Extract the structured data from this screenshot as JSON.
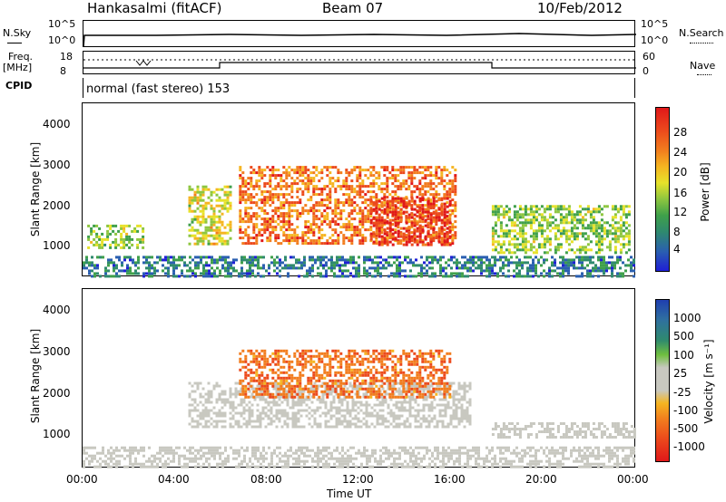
{
  "header": {
    "station": "Hankasalmi (fitACF)",
    "beam": "Beam 07",
    "date": "10/Feb/2012"
  },
  "strip": {
    "nsky_label": "N.Sky",
    "nsky_ticks": [
      "10^5",
      "10^0"
    ],
    "nsearch_label": "N.Search",
    "nsearch_ticks": [
      "10^5",
      "10^0"
    ],
    "freq_label": "Freq.",
    "freq_unit": "[MHz]",
    "freq_ticks": [
      "18",
      "8"
    ],
    "nave_label": "Nave",
    "nave_ticks": [
      "60",
      "0"
    ],
    "cpid_label": "CPID",
    "cpid_value": "normal (fast stereo) 153"
  },
  "chart_data": [
    {
      "type": "heatmap",
      "title": "",
      "ylabel": "Slant Range [km]",
      "xlabel": "",
      "yticks": [
        "1000",
        "2000",
        "3000",
        "4000"
      ],
      "ylim": [
        200,
        4600
      ],
      "xlim_hours": [
        0,
        24
      ],
      "colorbar": {
        "label": "Power [dB]",
        "ticks": [
          "4",
          "8",
          "12",
          "16",
          "20",
          "24",
          "28"
        ],
        "colors": [
          "#1f1fd6",
          "#2a5fb0",
          "#2f8a6e",
          "#3fa04a",
          "#8ec63f",
          "#e7e22a",
          "#f5b521",
          "#f27d1e",
          "#ec4a1c",
          "#e0181a"
        ]
      },
      "regions": [
        {
          "name": "early-morning echoes",
          "t": [
            0.2,
            2.6
          ],
          "range": [
            900,
            1500
          ],
          "level": 0.45
        },
        {
          "name": "ground scatter band",
          "t": [
            0.0,
            24.0
          ],
          "range": [
            200,
            700
          ],
          "level": 0.2
        },
        {
          "name": "dawn arc",
          "t": [
            4.6,
            6.4
          ],
          "range": [
            1000,
            2500
          ],
          "level": 0.55
        },
        {
          "name": "daytime main region",
          "t": [
            6.8,
            16.2
          ],
          "range": [
            1000,
            3000
          ],
          "level": 0.8
        },
        {
          "name": "afternoon strong echoes",
          "t": [
            12.5,
            16.0
          ],
          "range": [
            1000,
            2200
          ],
          "level": 0.95
        },
        {
          "name": "evening band",
          "t": [
            17.8,
            23.8
          ],
          "range": [
            800,
            2000
          ],
          "level": 0.45
        }
      ]
    },
    {
      "type": "heatmap",
      "title": "",
      "ylabel": "Slant Range [km]",
      "xlabel": "Time UT",
      "yticks": [
        "1000",
        "2000",
        "3000",
        "4000"
      ],
      "xticks": [
        "00:00",
        "04:00",
        "08:00",
        "12:00",
        "16:00",
        "20:00",
        "00:00"
      ],
      "ylim": [
        200,
        4600
      ],
      "xlim_hours": [
        0,
        24
      ],
      "colorbar": {
        "label": "Velocity [m s⁻¹]",
        "ticks": [
          "1000",
          "500",
          "100",
          "25",
          "-25",
          "-100",
          "-500",
          "-1000"
        ],
        "colors": [
          "#1f3fb0",
          "#2f6fa0",
          "#2f8a6e",
          "#6fbf3f",
          "#c8c8c0",
          "#c8c8c0",
          "#f5b521",
          "#f27d1e",
          "#ec4a1c",
          "#e0181a"
        ]
      },
      "regions": [
        {
          "name": "ground scatter (grey)",
          "t": [
            4.6,
            16.8
          ],
          "range": [
            1200,
            2300
          ],
          "level": 0.0
        },
        {
          "name": "negative velocity region",
          "t": [
            6.8,
            16.0
          ],
          "range": [
            1900,
            3100
          ],
          "level": -0.6
        },
        {
          "name": "evening grey",
          "t": [
            17.8,
            24.0
          ],
          "range": [
            900,
            1300
          ],
          "level": 0.0
        },
        {
          "name": "low-range noise",
          "t": [
            0.0,
            24.0
          ],
          "range": [
            200,
            700
          ],
          "level": 0.0
        }
      ]
    }
  ]
}
